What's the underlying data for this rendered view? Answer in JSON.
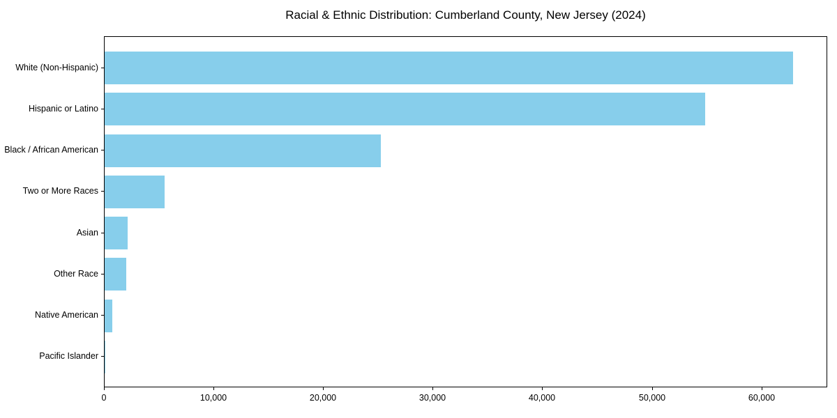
{
  "chart_data": {
    "type": "bar",
    "orientation": "horizontal",
    "title": "Racial & Ethnic Distribution: Cumberland County, New Jersey (2024)",
    "categories": [
      "White (Non-Hispanic)",
      "Hispanic or Latino",
      "Black / African American",
      "Two or More Races",
      "Asian",
      "Other Race",
      "Native American",
      "Pacific Islander"
    ],
    "values": [
      62800,
      54800,
      25200,
      5500,
      2100,
      2000,
      700,
      50
    ],
    "xlabel": "",
    "ylabel": "",
    "xlim": [
      0,
      66000
    ],
    "xticks": [
      0,
      10000,
      20000,
      30000,
      40000,
      50000,
      60000
    ],
    "xtick_labels": [
      "0",
      "10,000",
      "20,000",
      "30,000",
      "40,000",
      "50,000",
      "60,000"
    ],
    "bar_color": "#87CEEB",
    "spine_color": "#000000",
    "grid": false,
    "legend": null
  }
}
